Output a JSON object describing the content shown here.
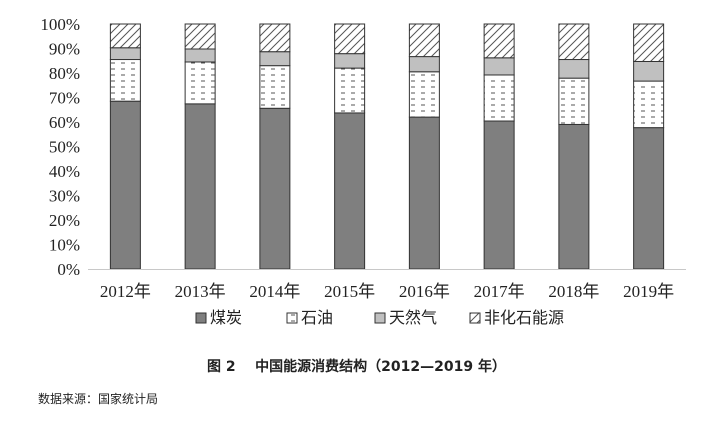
{
  "chart_data": {
    "type": "bar",
    "stacked": true,
    "categories": [
      "2012年",
      "2013年",
      "2014年",
      "2015年",
      "2016年",
      "2017年",
      "2018年",
      "2019年"
    ],
    "series": [
      {
        "name": "煤炭",
        "values": [
          68.5,
          67.4,
          65.6,
          63.7,
          62.0,
          60.4,
          59.0,
          57.7
        ],
        "fill": "#7f7f7f",
        "pattern": "solid"
      },
      {
        "name": "石油",
        "values": [
          17.0,
          17.1,
          17.4,
          18.3,
          18.5,
          18.8,
          18.9,
          19.0
        ],
        "fill": "#ffffff",
        "pattern": "dash"
      },
      {
        "name": "天然气",
        "values": [
          4.8,
          5.3,
          5.7,
          5.9,
          6.2,
          7.0,
          7.6,
          8.0
        ],
        "fill": "#c0c0c0",
        "pattern": "solid"
      },
      {
        "name": "非化石能源",
        "values": [
          9.7,
          10.2,
          11.3,
          12.1,
          13.3,
          13.8,
          14.5,
          15.3
        ],
        "fill": "#ffffff",
        "pattern": "diagonal"
      }
    ],
    "ylim": [
      0,
      100
    ],
    "yticks": [
      "0%",
      "10%",
      "20%",
      "30%",
      "40%",
      "50%",
      "60%",
      "70%",
      "80%",
      "90%",
      "100%"
    ],
    "grid": false,
    "legend": "bottom"
  },
  "caption": {
    "fig_label": "图 2",
    "title": "中国能源消费结构（2012—2019 年）"
  },
  "source": "数据来源：国家统计局"
}
